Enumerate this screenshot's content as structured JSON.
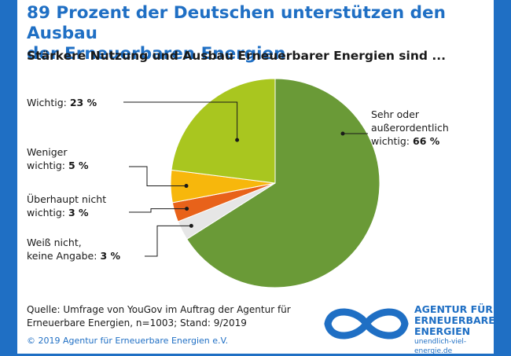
{
  "title_line1": "89 Prozent der Deutschen unterstützen den Ausbau",
  "title_line2": "der Erneuerbaren Energien",
  "subtitle": "Stärkere Nutzung und Ausbau Erneuerbarer Energien sind ...",
  "chart_data": {
    "type": "pie",
    "title": "89 Prozent der Deutschen unterstützen den Ausbau der Erneuerbaren Energien",
    "subtitle": "Stärkere Nutzung und Ausbau Erneuerbarer Energien sind ...",
    "unit": "%",
    "slices": [
      {
        "label": "Sehr oder außerordentlich wichtig:",
        "label_lines": [
          "Sehr oder",
          "außerordentlich",
          "wichtig:"
        ],
        "value": 66,
        "value_text": "66 %",
        "color": "#6a9a37"
      },
      {
        "label": "Weiß nicht, keine Angabe:",
        "label_lines": [
          "Weiß nicht,",
          "keine Angabe:"
        ],
        "value": 3,
        "value_text": "3 %",
        "color": "#e6e6e6"
      },
      {
        "label": "Überhaupt nicht wichtig:",
        "label_lines": [
          "Überhaupt nicht",
          "wichtig:"
        ],
        "value": 3,
        "value_text": "3 %",
        "color": "#e8621a"
      },
      {
        "label": "Weniger wichtig:",
        "label_lines": [
          "Weniger",
          "wichtig:"
        ],
        "value": 5,
        "value_text": "5 %",
        "color": "#f7b70c"
      },
      {
        "label": "Wichtig:",
        "label_lines": [
          "Wichtig:"
        ],
        "value": 23,
        "value_text": "23 %",
        "color": "#a9c61f"
      }
    ]
  },
  "source_line1": "Quelle: Umfrage von YouGov im Auftrag der Agentur für",
  "source_line2": "Erneuerbare Energien, n=1003; Stand: 9/2019",
  "copyright": "© 2019 Agentur für Erneuerbare Energien e.V.",
  "brand": {
    "line1": "AGENTUR FÜR",
    "line2": "ERNEUERBARE",
    "line3": "ENERGIEN",
    "url": "unendlich-viel-energie.de"
  }
}
